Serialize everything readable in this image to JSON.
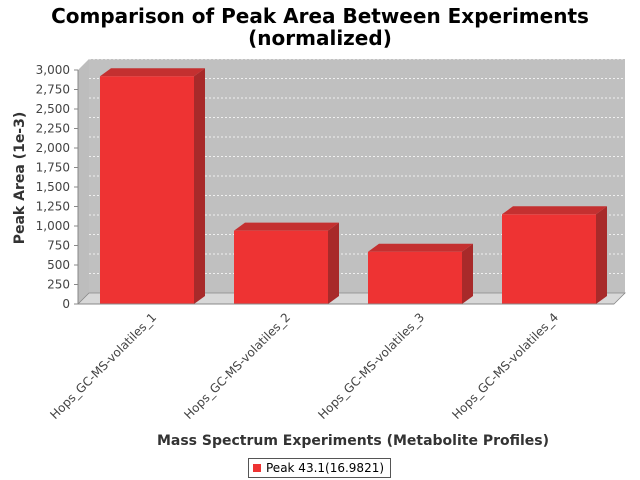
{
  "chart_data": {
    "type": "bar",
    "title_lines": [
      "Comparison of Peak Area Between Experiments",
      "(normalized)"
    ],
    "xlabel": "Mass Spectrum Experiments (Metabolite Profiles)",
    "ylabel": "Peak Area (1e-3)",
    "categories": [
      "Hops_GC-MS-volatiles_1",
      "Hops_GC-MS-volatiles_2",
      "Hops_GC-MS-volatiles_3",
      "Hops_GC-MS-volatiles_4"
    ],
    "series": [
      {
        "name": "Peak 43.1(16.9821)",
        "values": [
          2920,
          940,
          670,
          1150
        ],
        "color": "#ee3333"
      }
    ],
    "ylim": [
      0,
      3000
    ],
    "yticks": [
      0,
      250,
      500,
      750,
      1000,
      1250,
      1500,
      1750,
      2000,
      2250,
      2500,
      2750,
      3000
    ],
    "ytick_labels": [
      "0",
      "250",
      "500",
      "750",
      "1,000",
      "1,250",
      "1,500",
      "1,750",
      "2,000",
      "2,250",
      "2,500",
      "2,750",
      "3,000"
    ],
    "grid": true,
    "legend_position": "bottom-center",
    "plot_background": "#c0c0c0"
  }
}
